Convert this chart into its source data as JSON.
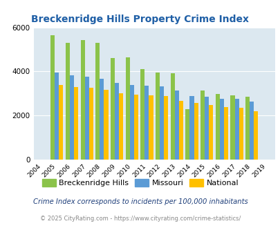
{
  "title": "Breckenridge Hills Property Crime Index",
  "years": [
    2004,
    2005,
    2006,
    2007,
    2008,
    2009,
    2010,
    2011,
    2012,
    2013,
    2014,
    2015,
    2016,
    2017,
    2018,
    2019
  ],
  "breckenridge": [
    null,
    5650,
    5300,
    5430,
    5300,
    4620,
    4650,
    4100,
    3960,
    3910,
    2300,
    3150,
    2980,
    2930,
    2850,
    null
  ],
  "missouri": [
    null,
    3960,
    3840,
    3760,
    3660,
    3480,
    3380,
    3340,
    3330,
    3130,
    2890,
    2850,
    2770,
    2750,
    2640,
    null
  ],
  "national": [
    null,
    3380,
    3290,
    3270,
    3160,
    3020,
    2960,
    2900,
    2870,
    2680,
    2560,
    2470,
    2390,
    2340,
    2180,
    null
  ],
  "bar_width": 0.28,
  "breckenridge_color": "#8bc34a",
  "missouri_color": "#5b9bd5",
  "national_color": "#ffc000",
  "plot_bg": "#dce8f0",
  "ylim": [
    0,
    6000
  ],
  "yticks": [
    0,
    2000,
    4000,
    6000
  ],
  "footnote1": "Crime Index corresponds to incidents per 100,000 inhabitants",
  "footnote2": "© 2025 CityRating.com - https://www.cityrating.com/crime-statistics/",
  "legend_labels": [
    "Breckenridge Hills",
    "Missouri",
    "National"
  ],
  "title_color": "#1f5fa6",
  "footnote1_color": "#1f3f7a",
  "footnote2_color": "#888888"
}
